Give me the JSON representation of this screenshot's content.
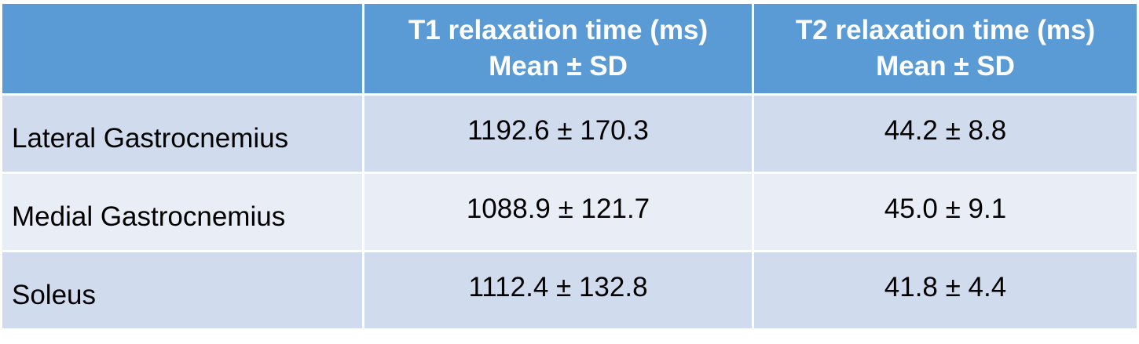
{
  "table": {
    "header": [
      [
        "T1 relaxation time (ms)",
        "Mean ± SD"
      ],
      [
        "T2 relaxation time (ms)",
        "Mean ± SD"
      ]
    ],
    "rows": [
      [
        "Lateral Gastrocnemius",
        "1192.6 ± 170.3",
        "44.2 ± 8.8"
      ],
      [
        "Medial Gastrocnemius",
        "1088.9 ± 121.7",
        "45.0 ± 9.1"
      ],
      [
        "Soleus",
        "1112.4 ± 132.8",
        "41.8 ± 4.4"
      ]
    ]
  }
}
